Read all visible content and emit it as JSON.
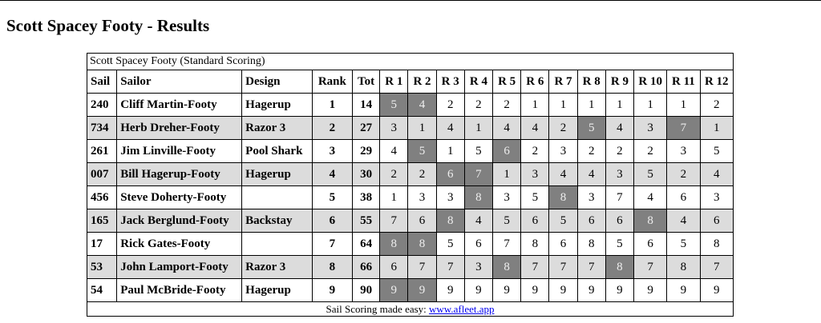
{
  "page_title": "Scott Spacey Footy - Results",
  "table_caption": "Scott Spacey Footy (Standard Scoring)",
  "headers": [
    "Sail",
    "Sailor",
    "Design",
    "Rank",
    "Tot",
    "R 1",
    "R 2",
    "R 3",
    "R 4",
    "R 5",
    "R 6",
    "R 7",
    "R 8",
    "R 9",
    "R 10",
    "R 11",
    "R 12"
  ],
  "discard_color": "#808080",
  "alt_row_color": "#dcdcdc",
  "rows": [
    {
      "sail": "240",
      "sailor": "Cliff Martin-Footy",
      "design": "Hagerup",
      "rank": "1",
      "tot": "14",
      "races": [
        "5",
        "4",
        "2",
        "2",
        "2",
        "1",
        "1",
        "1",
        "1",
        "1",
        "1",
        "2"
      ],
      "discards": [
        0,
        1
      ]
    },
    {
      "sail": "734",
      "sailor": "Herb Dreher-Footy",
      "design": "Razor 3",
      "rank": "2",
      "tot": "27",
      "races": [
        "3",
        "1",
        "4",
        "1",
        "4",
        "4",
        "2",
        "5",
        "4",
        "3",
        "7",
        "1"
      ],
      "discards": [
        7,
        10
      ]
    },
    {
      "sail": "261",
      "sailor": "Jim Linville-Footy",
      "design": "Pool Shark",
      "rank": "3",
      "tot": "29",
      "races": [
        "4",
        "5",
        "1",
        "5",
        "6",
        "2",
        "3",
        "2",
        "2",
        "2",
        "3",
        "5"
      ],
      "discards": [
        1,
        4
      ]
    },
    {
      "sail": "007",
      "sailor": "Bill Hagerup-Footy",
      "design": "Hagerup",
      "rank": "4",
      "tot": "30",
      "races": [
        "2",
        "2",
        "6",
        "7",
        "1",
        "3",
        "4",
        "4",
        "3",
        "5",
        "2",
        "4"
      ],
      "discards": [
        2,
        3
      ]
    },
    {
      "sail": "456",
      "sailor": "Steve Doherty-Footy",
      "design": "",
      "rank": "5",
      "tot": "38",
      "races": [
        "1",
        "3",
        "3",
        "8",
        "3",
        "5",
        "8",
        "3",
        "7",
        "4",
        "6",
        "3"
      ],
      "discards": [
        3,
        6
      ]
    },
    {
      "sail": "165",
      "sailor": "Jack Berglund-Footy",
      "design": "Backstay",
      "rank": "6",
      "tot": "55",
      "races": [
        "7",
        "6",
        "8",
        "4",
        "5",
        "6",
        "5",
        "6",
        "6",
        "8",
        "4",
        "6"
      ],
      "discards": [
        2,
        9
      ]
    },
    {
      "sail": "17",
      "sailor": "Rick Gates-Footy",
      "design": "",
      "rank": "7",
      "tot": "64",
      "races": [
        "8",
        "8",
        "5",
        "6",
        "7",
        "8",
        "6",
        "8",
        "5",
        "6",
        "5",
        "8"
      ],
      "discards": [
        0,
        1
      ]
    },
    {
      "sail": "53",
      "sailor": "John Lamport-Footy",
      "design": "Razor 3",
      "rank": "8",
      "tot": "66",
      "races": [
        "6",
        "7",
        "7",
        "3",
        "8",
        "7",
        "7",
        "7",
        "8",
        "7",
        "8",
        "7"
      ],
      "discards": [
        4,
        8
      ]
    },
    {
      "sail": "54",
      "sailor": "Paul McBride-Footy",
      "design": "Hagerup",
      "rank": "9",
      "tot": "90",
      "races": [
        "9",
        "9",
        "9",
        "9",
        "9",
        "9",
        "9",
        "9",
        "9",
        "9",
        "9",
        "9"
      ],
      "discards": [
        0,
        1
      ]
    }
  ],
  "footer": {
    "text": "Sail Scoring made easy: ",
    "link": "www.afleet.app"
  }
}
